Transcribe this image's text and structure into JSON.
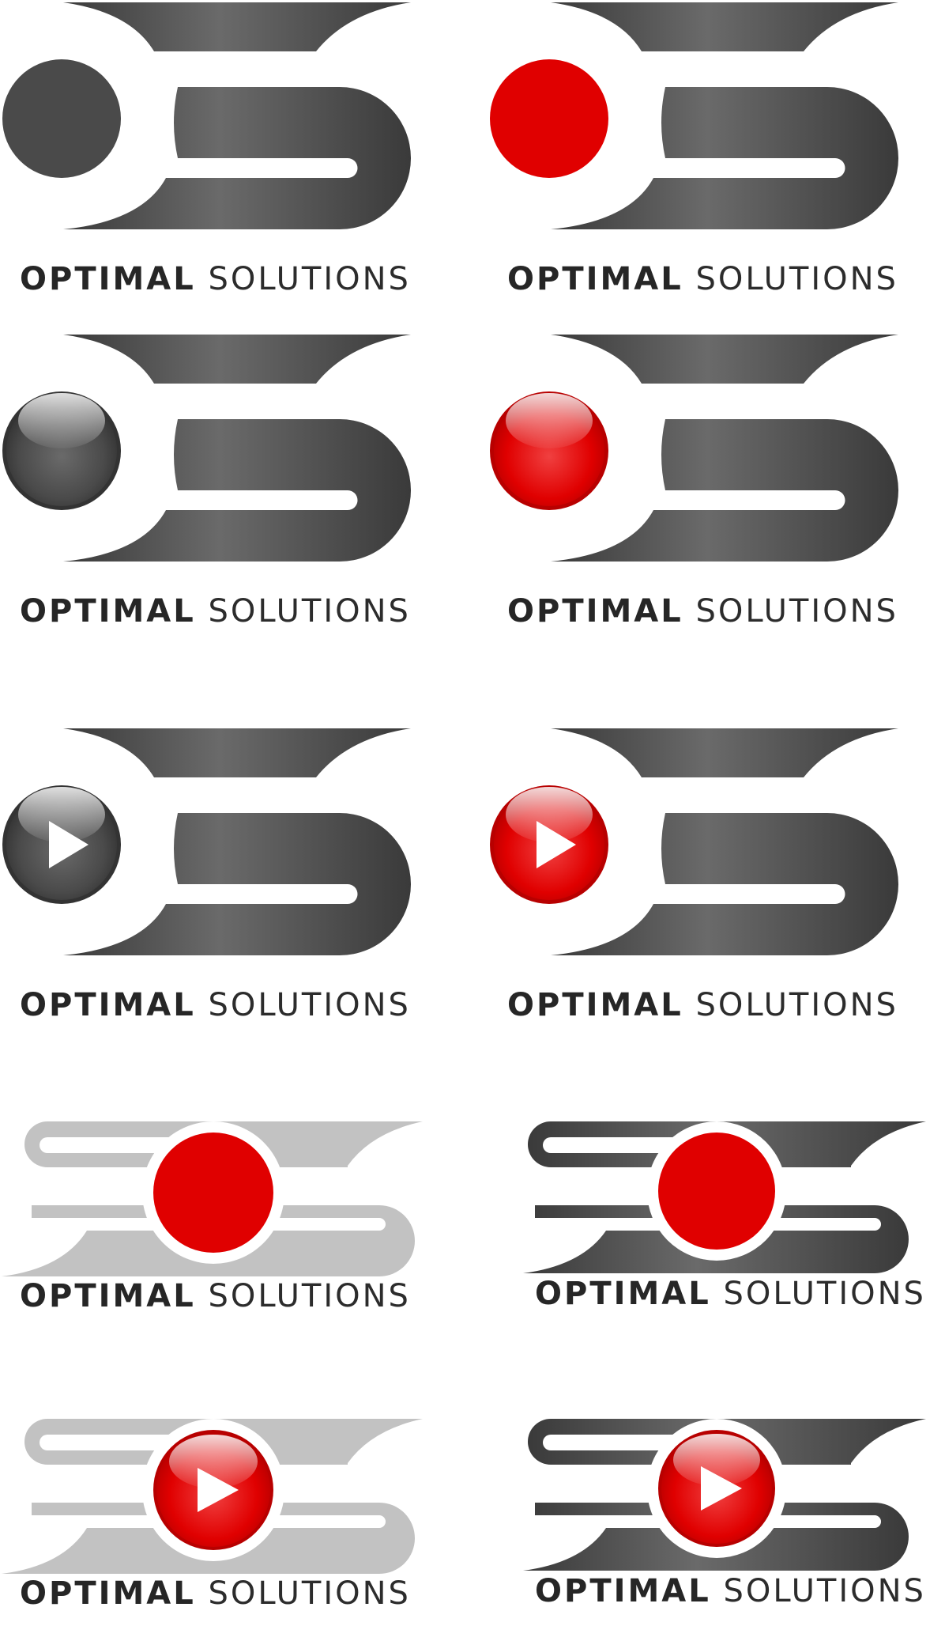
{
  "colors": {
    "dark_gradient": [
      "#3a3a3a",
      "#6a6a6a",
      "#3a3a3a"
    ],
    "light_gray": "#c2c2c2",
    "dark_dot": "#4a4a4a",
    "red": "#e00000",
    "white": "#ffffff"
  },
  "logos": [
    {
      "id": "logo-1",
      "style": "os",
      "circle": "flat-gray",
      "word1": "OPTIMAL",
      "word2": "SOLUTIONS"
    },
    {
      "id": "logo-2",
      "style": "os",
      "circle": "flat-red",
      "word1": "OPTIMAL",
      "word2": "SOLUTIONS"
    },
    {
      "id": "logo-3",
      "style": "os",
      "circle": "glossy-gray",
      "word1": "OPTIMAL",
      "word2": "SOLUTIONS"
    },
    {
      "id": "logo-4",
      "style": "os",
      "circle": "glossy-red",
      "word1": "OPTIMAL",
      "word2": "SOLUTIONS"
    },
    {
      "id": "logo-5",
      "style": "os",
      "circle": "play-gray",
      "word1": "OPTIMAL",
      "word2": "SOLUTIONS"
    },
    {
      "id": "logo-6",
      "style": "os",
      "circle": "play-red",
      "word1": "OPTIMAL",
      "word2": "SOLUTIONS"
    },
    {
      "id": "logo-7",
      "style": "sos-light",
      "circle": "flat-red",
      "word1": "OPTIMAL",
      "word2": "SOLUTIONS"
    },
    {
      "id": "logo-8",
      "style": "sos-dark",
      "circle": "flat-red",
      "word1": "OPTIMAL",
      "word2": "SOLUTIONS"
    },
    {
      "id": "logo-9",
      "style": "sos-light",
      "circle": "play-red",
      "word1": "OPTIMAL",
      "word2": "SOLUTIONS"
    },
    {
      "id": "logo-10",
      "style": "sos-dark",
      "circle": "play-red",
      "word1": "OPTIMAL",
      "word2": "SOLUTIONS"
    }
  ]
}
